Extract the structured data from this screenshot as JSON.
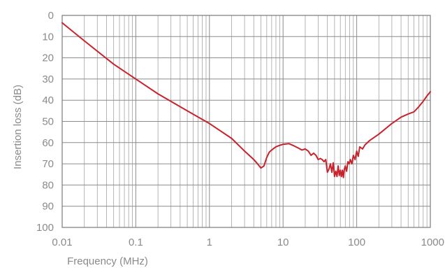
{
  "chart_data": {
    "type": "line",
    "title": "",
    "xlabel": "Frequency (MHz)",
    "ylabel": "Insertion loss (dB)",
    "x_scale": "log",
    "xlim": [
      0.01,
      1000
    ],
    "ylim": [
      0,
      100
    ],
    "y_inverted": true,
    "grid": true,
    "legend": "none",
    "x_ticks": [
      "0.01",
      "0.1",
      "1",
      "10",
      "100",
      "1000"
    ],
    "y_ticks": [
      "0",
      "10",
      "20",
      "30",
      "40",
      "50",
      "60",
      "70",
      "80",
      "90",
      "100"
    ],
    "colors": {
      "line": "#c8232c",
      "grid": "#8c8c8c",
      "text": "#8a8a8a"
    },
    "series": [
      {
        "x": [
          0.01,
          0.02,
          0.05,
          0.1,
          0.2,
          0.5,
          1,
          2,
          3,
          4,
          4.5,
          5,
          5.5,
          6,
          6.5,
          7,
          7.5,
          8,
          9,
          10,
          12,
          14,
          16,
          18,
          20,
          22,
          24,
          26,
          28,
          30,
          32,
          34,
          36,
          38,
          40,
          42,
          44,
          46,
          48,
          50,
          52,
          54,
          56,
          58,
          60,
          62,
          64,
          66,
          68,
          70,
          73,
          76,
          79,
          82,
          86,
          90,
          95,
          100,
          105,
          110,
          120,
          130,
          150,
          200,
          300,
          400,
          500,
          600,
          700,
          800,
          900,
          1000
        ],
        "y": [
          3.5,
          12,
          23,
          30,
          37,
          45,
          51,
          58,
          64,
          68,
          70,
          72,
          71,
          67,
          64.5,
          63.5,
          62.7,
          62,
          61.3,
          60.8,
          60.5,
          61.5,
          62.5,
          63.5,
          63,
          64,
          66,
          65,
          66,
          68,
          67.5,
          68,
          69,
          68,
          74,
          72.5,
          70,
          74,
          69.5,
          76,
          73.5,
          76,
          71,
          75.5,
          73,
          76,
          73,
          76.5,
          72.5,
          71,
          73.5,
          69,
          70,
          68,
          70,
          66,
          68,
          64,
          66.5,
          62,
          63,
          61,
          59,
          56,
          51,
          48,
          46.5,
          45.5,
          43,
          40.5,
          38,
          36
        ]
      }
    ]
  }
}
